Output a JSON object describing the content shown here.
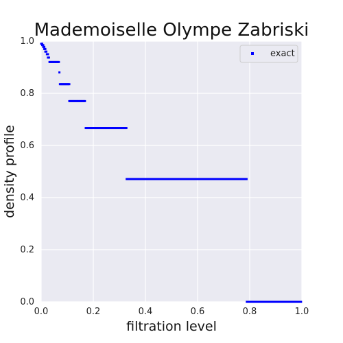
{
  "chart_data": {
    "type": "scatter",
    "title": "Mademoiselle Olympe Zabriski",
    "xlabel": "filtration level",
    "ylabel": "density profile",
    "xlim": [
      0,
      1
    ],
    "ylim": [
      0,
      1
    ],
    "xticks": [
      "0.0",
      "0.2",
      "0.4",
      "0.6",
      "0.8",
      "1.0"
    ],
    "yticks": [
      "0.0",
      "0.2",
      "0.4",
      "0.6",
      "0.8",
      "1.0"
    ],
    "grid": true,
    "legend_position": "top-right",
    "colors": {
      "series": "#0000ff",
      "plot_background": "#eaeaf2",
      "grid": "#ffffff"
    },
    "series": [
      {
        "name": "exact",
        "marker": "square",
        "steps": [
          {
            "y": 0.99,
            "x_start": 0.0,
            "x_end": 0.004
          },
          {
            "y": 0.985,
            "x_start": 0.004,
            "x_end": 0.008
          },
          {
            "y": 0.978,
            "x_start": 0.008,
            "x_end": 0.012
          },
          {
            "y": 0.97,
            "x_start": 0.012,
            "x_end": 0.016
          },
          {
            "y": 0.96,
            "x_start": 0.016,
            "x_end": 0.022
          },
          {
            "y": 0.95,
            "x_start": 0.022,
            "x_end": 0.026
          },
          {
            "y": 0.937,
            "x_start": 0.026,
            "x_end": 0.032
          },
          {
            "y": 0.92,
            "x_start": 0.032,
            "x_end": 0.07
          },
          {
            "y": 0.88,
            "x_start": 0.07,
            "x_end": 0.072
          },
          {
            "y": 0.835,
            "x_start": 0.072,
            "x_end": 0.108
          },
          {
            "y": 0.77,
            "x_start": 0.108,
            "x_end": 0.171
          },
          {
            "y": 0.667,
            "x_start": 0.171,
            "x_end": 0.328
          },
          {
            "y": 0.471,
            "x_start": 0.328,
            "x_end": 0.789
          },
          {
            "y": 0.0,
            "x_start": 0.789,
            "x_end": 1.0
          }
        ]
      }
    ]
  }
}
